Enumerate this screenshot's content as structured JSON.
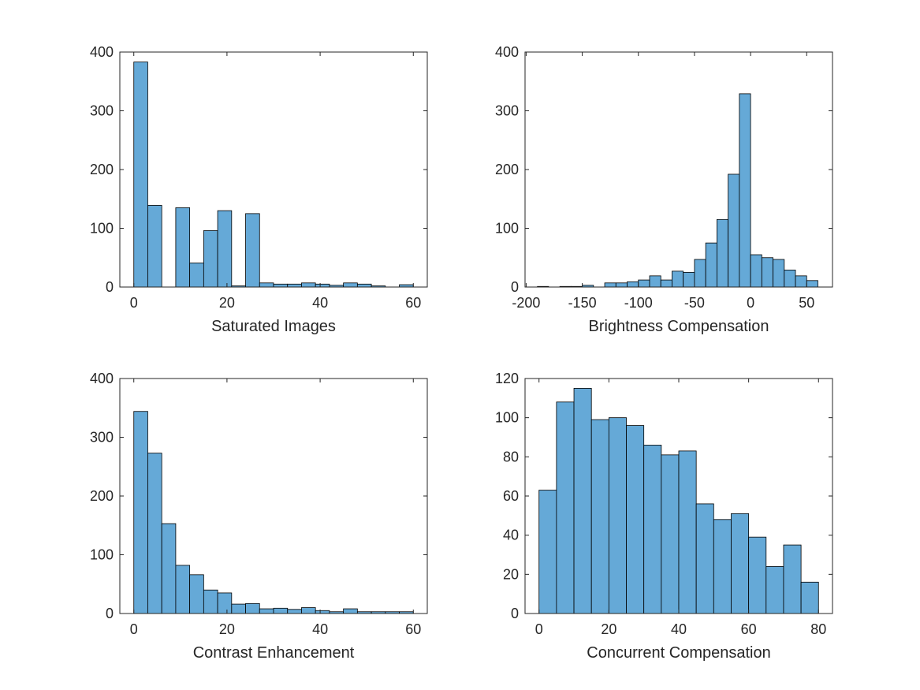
{
  "chart_data": [
    {
      "type": "histogram",
      "xlabel": "Saturated Images",
      "color": "#65a9d7",
      "bins": [
        0,
        3,
        6,
        9,
        12,
        15,
        18,
        21,
        24,
        27,
        30,
        33,
        36,
        39,
        42,
        45,
        48,
        51,
        54,
        57,
        60
      ],
      "values": [
        383,
        139,
        0,
        135,
        41,
        96,
        130,
        2,
        125,
        7,
        5,
        5,
        7,
        5,
        3,
        7,
        5,
        2,
        0,
        4
      ],
      "xlim": [
        -3,
        63
      ],
      "ylim": [
        0,
        400
      ],
      "xticks": [
        0,
        20,
        40,
        60
      ],
      "yticks": [
        0,
        100,
        200,
        300,
        400
      ]
    },
    {
      "type": "histogram",
      "xlabel": "Brightness Compensation",
      "color": "#65a9d7",
      "bins": [
        -190,
        -180,
        -170,
        -160,
        -150,
        -140,
        -130,
        -120,
        -110,
        -100,
        -90,
        -80,
        -70,
        -60,
        -50,
        -40,
        -30,
        -20,
        -10,
        0,
        10,
        20,
        30,
        40,
        50,
        60
      ],
      "values": [
        1,
        0,
        1,
        1,
        3,
        0,
        7,
        7,
        9,
        12,
        19,
        12,
        27,
        25,
        47,
        75,
        115,
        192,
        329,
        55,
        50,
        47,
        29,
        19,
        11
      ],
      "xlim": [
        -201,
        73
      ],
      "ylim": [
        0,
        400
      ],
      "xticks": [
        -200,
        -150,
        -100,
        -50,
        0,
        50
      ],
      "yticks": [
        0,
        100,
        200,
        300,
        400
      ]
    },
    {
      "type": "histogram",
      "xlabel": "Contrast Enhancement",
      "color": "#65a9d7",
      "bins": [
        0,
        3,
        6,
        9,
        12,
        15,
        18,
        21,
        24,
        27,
        30,
        33,
        36,
        39,
        42,
        45,
        48,
        51,
        54,
        57,
        60
      ],
      "values": [
        344,
        273,
        153,
        82,
        66,
        40,
        35,
        16,
        17,
        8,
        9,
        7,
        10,
        5,
        3,
        8,
        3,
        3,
        3,
        3
      ],
      "xlim": [
        -3,
        63
      ],
      "ylim": [
        0,
        400
      ],
      "xticks": [
        0,
        20,
        40,
        60
      ],
      "yticks": [
        0,
        100,
        200,
        300,
        400
      ]
    },
    {
      "type": "histogram",
      "xlabel": "Concurrent Compensation",
      "color": "#65a9d7",
      "bins": [
        0,
        5,
        10,
        15,
        20,
        25,
        30,
        35,
        40,
        45,
        50,
        55,
        60,
        65,
        70,
        75,
        80
      ],
      "values": [
        63,
        108,
        115,
        99,
        100,
        96,
        86,
        81,
        83,
        56,
        48,
        51,
        39,
        24,
        35,
        16
      ],
      "xlim": [
        -4,
        84
      ],
      "ylim": [
        0,
        120
      ],
      "xticks": [
        0,
        20,
        40,
        60,
        80
      ],
      "yticks": [
        0,
        20,
        40,
        60,
        80,
        100,
        120
      ]
    }
  ]
}
